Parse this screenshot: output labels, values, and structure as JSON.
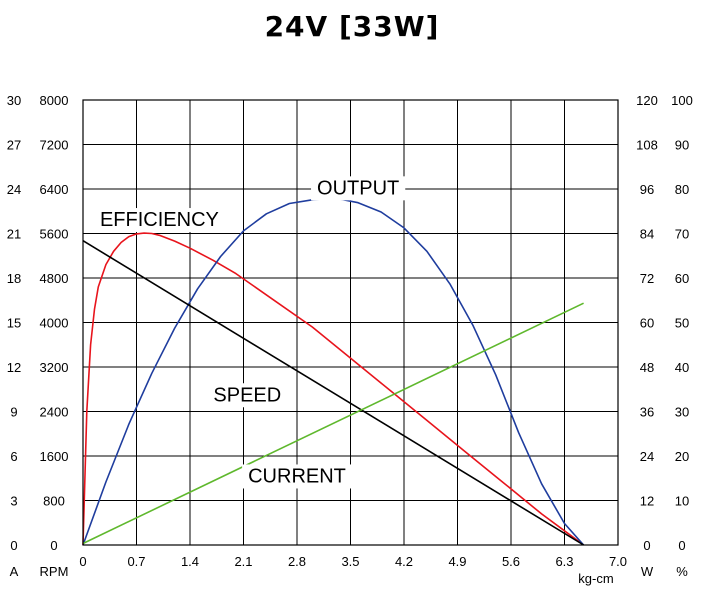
{
  "chart_data": {
    "type": "line",
    "title": "24V [33W]",
    "xlabel": "kg-cm",
    "x_ticks": [
      "0",
      "0.7",
      "1.4",
      "2.1",
      "2.8",
      "3.5",
      "4.2",
      "4.9",
      "5.6",
      "6.3",
      "7.0"
    ],
    "xlim": [
      0,
      7.0
    ],
    "grid": true,
    "axes": {
      "current": {
        "unit": "A",
        "range": [
          0,
          30
        ],
        "ticks": [
          "0",
          "3",
          "6",
          "9",
          "12",
          "15",
          "18",
          "21",
          "24",
          "27",
          "30"
        ]
      },
      "speed": {
        "unit": "RPM",
        "range": [
          0,
          8000
        ],
        "ticks": [
          "0",
          "800",
          "1600",
          "2400",
          "3200",
          "4000",
          "4800",
          "5600",
          "6400",
          "7200",
          "8000"
        ]
      },
      "output": {
        "unit": "W",
        "range": [
          0,
          120
        ],
        "ticks": [
          "0",
          "12",
          "24",
          "36",
          "48",
          "60",
          "72",
          "84",
          "96",
          "108",
          "120"
        ]
      },
      "efficiency": {
        "unit": "%",
        "range": [
          0,
          100
        ],
        "ticks": [
          "0",
          "10",
          "20",
          "30",
          "40",
          "50",
          "60",
          "70",
          "80",
          "90",
          "100"
        ]
      }
    },
    "series": [
      {
        "name": "EFFICIENCY",
        "axis": "efficiency",
        "color": "#e8141c",
        "points": [
          [
            0,
            0
          ],
          [
            0.05,
            30
          ],
          [
            0.1,
            45
          ],
          [
            0.15,
            53
          ],
          [
            0.2,
            58
          ],
          [
            0.3,
            63
          ],
          [
            0.4,
            66
          ],
          [
            0.5,
            68
          ],
          [
            0.6,
            69.3
          ],
          [
            0.7,
            69.9
          ],
          [
            0.8,
            70.1
          ],
          [
            0.9,
            70
          ],
          [
            1.0,
            69.6
          ],
          [
            1.2,
            68.3
          ],
          [
            1.4,
            66.7
          ],
          [
            1.7,
            64
          ],
          [
            2.0,
            61
          ],
          [
            2.5,
            55
          ],
          [
            3.0,
            49
          ],
          [
            3.5,
            42
          ],
          [
            4.0,
            35
          ],
          [
            4.5,
            28
          ],
          [
            5.0,
            21
          ],
          [
            5.5,
            14
          ],
          [
            6.0,
            7
          ],
          [
            6.3,
            3.2
          ],
          [
            6.55,
            0
          ]
        ]
      },
      {
        "name": "OUTPUT",
        "axis": "output",
        "color": "#1f3d9e",
        "points": [
          [
            0,
            0
          ],
          [
            0.3,
            17
          ],
          [
            0.6,
            32.6
          ],
          [
            0.9,
            46.3
          ],
          [
            1.2,
            58.5
          ],
          [
            1.5,
            69.1
          ],
          [
            1.8,
            77.8
          ],
          [
            2.1,
            84.7
          ],
          [
            2.4,
            89.3
          ],
          [
            2.7,
            92.1
          ],
          [
            3.0,
            93.1
          ],
          [
            3.28,
            93.6
          ],
          [
            3.6,
            92.3
          ],
          [
            3.9,
            89.8
          ],
          [
            4.2,
            85.5
          ],
          [
            4.5,
            79.2
          ],
          [
            4.8,
            70.4
          ],
          [
            5.1,
            59.3
          ],
          [
            5.4,
            45.9
          ],
          [
            5.7,
            30.3
          ],
          [
            6.0,
            16.5
          ],
          [
            6.3,
            5.8
          ],
          [
            6.55,
            0
          ]
        ]
      },
      {
        "name": "SPEED",
        "axis": "speed",
        "color": "#000000",
        "points": [
          [
            0,
            5470
          ],
          [
            6.55,
            0
          ]
        ]
      },
      {
        "name": "CURRENT",
        "axis": "current",
        "color": "#5fb82d",
        "points": [
          [
            0,
            0.1
          ],
          [
            6.55,
            16.3
          ]
        ]
      }
    ],
    "series_labels": [
      {
        "text": "EFFICIENCY",
        "x": 1.0,
        "y_rpm": 5860
      },
      {
        "text": "OUTPUT",
        "x": 3.6,
        "y_rpm": 6430
      },
      {
        "text": "SPEED",
        "x": 2.15,
        "y_rpm": 2710
      },
      {
        "text": "CURRENT",
        "x": 2.8,
        "y_rpm": 1250
      }
    ]
  }
}
